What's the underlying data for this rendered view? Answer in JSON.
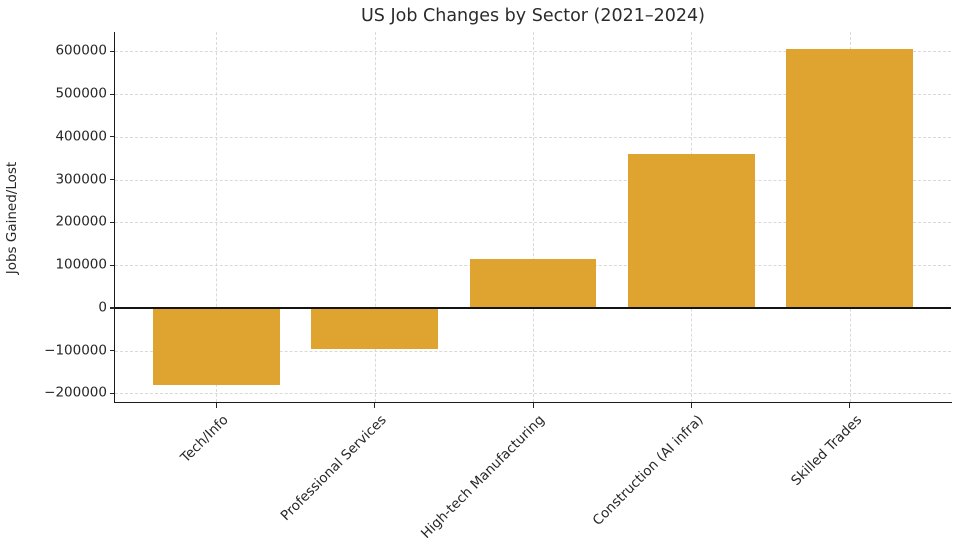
{
  "chart_data": {
    "type": "bar",
    "title": "US Job Changes by Sector (2021–2024)",
    "xlabel": "",
    "ylabel": "Jobs Gained/Lost",
    "categories": [
      "Tech/Info",
      "Professional Services",
      "High-tech Manufacturing",
      "Construction (AI infra)",
      "Skilled Trades"
    ],
    "values": [
      -180000,
      -95000,
      115000,
      360000,
      605000
    ],
    "ylim": [
      -220000,
      645000
    ],
    "yticks": [
      -200000,
      -100000,
      0,
      100000,
      200000,
      300000,
      400000,
      500000,
      600000
    ],
    "ytick_labels": [
      "−200000",
      "−100000",
      "0",
      "100000",
      "200000",
      "300000",
      "400000",
      "500000",
      "600000"
    ],
    "bar_color": "#dfa330",
    "grid": true,
    "grid_color": "#d9d9d9",
    "zero_line_color": "#141414",
    "legend": "none"
  }
}
